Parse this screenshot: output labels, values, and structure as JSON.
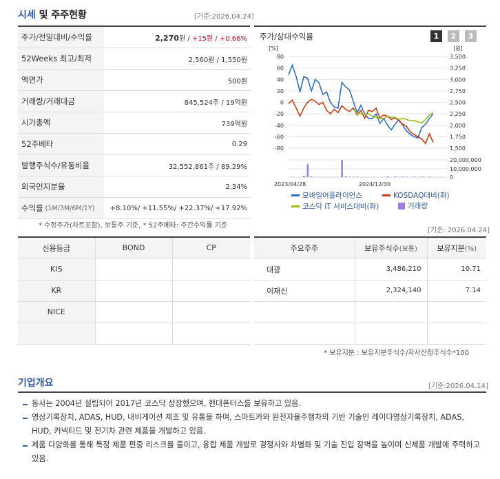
{
  "sise": {
    "title_main": "시세",
    "title_rest": " 및 주주현황",
    "date": "[기준:2026.04.24]",
    "rows": [
      {
        "label": "주가/전일대비/수익률",
        "price": "2,270",
        "won": "원",
        "change": " / +15원",
        "rate": " / +0.66%"
      },
      {
        "label": "52Weeks 최고/최저",
        "value": "2,560원 / 1,550원"
      },
      {
        "label": "액면가",
        "value": "500원"
      },
      {
        "label": "거래량/거래대금",
        "value": "845,524주 / 19억원"
      },
      {
        "label": "시가총액",
        "value": "739억원"
      },
      {
        "label": "52주베타",
        "value": "0.29"
      },
      {
        "label": "발행주식수/유동비율",
        "value": "32,552,861주 / 89.29%"
      },
      {
        "label": "외국인지분율",
        "value": "2.34%"
      },
      {
        "label": "수익률",
        "label_small": "(1M/3M/6M/1Y)",
        "value": "+8.10%/ +11.55%/ +22.37%/ +17.92%"
      }
    ],
    "footnote": "* 수정주가(차트포함), 보통주 기준, * 52주베타: 주간수익률 기준",
    "date2": "[기준: 2026.04.24]"
  },
  "chart_panel": {
    "title": "주가/상대수익률",
    "pages": [
      "1",
      "2",
      "3"
    ]
  },
  "chart_data": {
    "type": "line",
    "left_axis_unit": "[%]",
    "right_axis_unit": "[원]",
    "y_ticks": [
      80,
      60,
      40,
      20,
      0,
      -20,
      -40,
      -60,
      -80
    ],
    "y_tick_labels": [
      "80",
      "60",
      "40",
      "20",
      "0",
      "-20",
      "-40",
      "-60",
      "-80"
    ],
    "y2_ticks": [
      "3,500",
      "3,250",
      "3,000",
      "2,750",
      "2,500",
      "2,250",
      "2,000",
      "1,750",
      "1,500"
    ],
    "vol_ticks": [
      "20,000,000",
      "10,000,000",
      "0"
    ],
    "x_labels": [
      "2023/04/28",
      "2024/12/30"
    ],
    "ylim": [
      -80,
      80
    ],
    "series": [
      {
        "name": "모바일어플라이언스",
        "color": "#2f6fc8",
        "values": [
          48,
          65,
          45,
          18,
          45,
          42,
          20,
          40,
          34,
          14,
          18,
          0,
          -8,
          -10,
          35,
          27,
          22,
          2,
          -18,
          -5,
          -20,
          -28,
          -28,
          -20,
          -37,
          -28,
          -40,
          -48,
          -38,
          -30,
          -40,
          -50,
          -56,
          -60,
          -62,
          -44,
          -38,
          -28,
          -20
        ]
      },
      {
        "name": "KOSDAQ대비(좌)",
        "color": "#d03a12",
        "values": [
          -2,
          4,
          -10,
          -24,
          -10,
          0,
          5,
          2,
          -4,
          0,
          -14,
          -20,
          -12,
          -18,
          -6,
          -12,
          -16,
          -10,
          -22,
          -14,
          -28,
          -14,
          -16,
          -10,
          -28,
          -22,
          -24,
          -30,
          -27,
          -32,
          -38,
          -42,
          -52,
          -56,
          -60,
          -64,
          -72,
          -55,
          -70
        ]
      },
      {
        "name": "코스닥 IT 서비스대비(좌)",
        "color": "#9cbd1a",
        "values": [
          null,
          null,
          null,
          null,
          null,
          null,
          null,
          null,
          null,
          null,
          null,
          null,
          null,
          null,
          null,
          null,
          null,
          -12,
          -20,
          -20,
          -22,
          -20,
          -24,
          -26,
          -28,
          -28,
          -24,
          -26,
          -26,
          -30,
          -28,
          -30,
          -32,
          -32,
          -34,
          -36,
          -30,
          -22,
          -18
        ]
      }
    ],
    "volume": {
      "name": "거래량",
      "color": "#a07ce0",
      "values": [
        0,
        0,
        0,
        0,
        0.08,
        0.75,
        0.05,
        0,
        0,
        0,
        0,
        0,
        0,
        0,
        1.0,
        0.05,
        0.03,
        0.02,
        0.02,
        0,
        0,
        0,
        0,
        0,
        0,
        0,
        0.05,
        0,
        0.04,
        0,
        0.03,
        0.03,
        0,
        0.03,
        0,
        0.03,
        0,
        0.03,
        0
      ]
    }
  },
  "credit": {
    "headers": [
      "신용등급",
      "BOND",
      "CP"
    ],
    "rows": [
      [
        "KIS",
        "",
        ""
      ],
      [
        "KR",
        "",
        ""
      ],
      [
        "NICE",
        "",
        ""
      ],
      [
        "",
        "",
        ""
      ]
    ]
  },
  "holders": {
    "headers": [
      "주요주주",
      "보유주식수",
      "(보통)",
      "보유지분",
      "(%)"
    ],
    "rows": [
      {
        "name": "대광",
        "shares": "3,486,210",
        "pct": "10.71"
      },
      {
        "name": "이재신",
        "shares": "2,324,140",
        "pct": "7.14"
      }
    ],
    "note": "* 보유지분 : 보유지분주식수/자사산정주식수*100"
  },
  "overview": {
    "title": "기업개요",
    "date": "[기준:2026.04.14]",
    "items": [
      "동사는 2004년 설립되어 2017년 코스닥 상장했으며, 현대폰터스를 보유하고 있음.",
      "영상기록장치, ADAS, HUD, 내비게이션 제조 및 유통을 하며, 스마트카와 완전자율주행차의 기반 기술인 레이다영상기록장치, ADAS, HUD, 커넥티드 및 전기차 관련 제품을 개발하고 있음.",
      "제품 다양화를 통해 특정 제품 편중 리스크를 줄이고, 융합 제품 개발로 경쟁사와 차별화 및 기술 진입 장벽을 높이며 신제품 개발에 주력하고 있음."
    ]
  }
}
